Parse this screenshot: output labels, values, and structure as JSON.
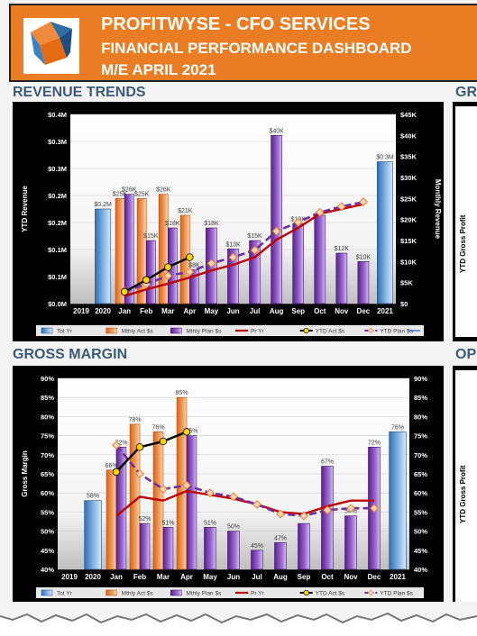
{
  "header": {
    "line1": "PROFITWYSE - CFO SERVICES",
    "line2": "FINANCIAL PERFORMANCE DASHBOARD",
    "line3": "M/E APRIL 2021"
  },
  "sections": {
    "revenue_title": "REVENUE TRENDS",
    "gm_title": "GROSS MARGIN",
    "right_top_title": "GR",
    "right_bottom_title": "OP",
    "right_top_axis": "YTD Gross Profit",
    "right_bottom_axis": "YTD Gross Profit"
  },
  "colors": {
    "header_bg": "#ea7d23",
    "tot_yr": "#5b9bd5",
    "mthly_act": "#ed7d31",
    "mthly_plan": "#7030a0",
    "pr_yr": "#c00000",
    "ytd_act": "#000000",
    "ytd_plan": "#7030a0"
  },
  "chart_data": [
    {
      "type": "bar",
      "title": "REVENUE TRENDS",
      "categories": [
        "2019",
        "2020",
        "Jan",
        "Feb",
        "Mar",
        "Apr",
        "May",
        "Jun",
        "Jul",
        "Aug",
        "Sep",
        "Oct",
        "Nov",
        "Dec",
        "2021"
      ],
      "ylabel": "YTD Revenue",
      "y2label": "Monthly Revenue",
      "yticks": [
        "$0.0M",
        "$0.1M",
        "$0.1M",
        "$0.2M",
        "$0.2M",
        "$0.3M",
        "$0.3M",
        "$0.4M"
      ],
      "y2ticks": [
        "$0",
        "$5K",
        "$10K",
        "$15K",
        "$20K",
        "$25K",
        "$30K",
        "$35K",
        "$40K",
        "$45K"
      ],
      "ylim": [
        0,
        0.4
      ],
      "y2lim": [
        0,
        45
      ],
      "series": [
        {
          "name": "Tot Yr",
          "axis": "left",
          "kind": "bar",
          "points": [
            {
              "x": "2020",
              "y": 0.2,
              "label": "$0.2M"
            },
            {
              "x": "2021",
              "y": 0.3,
              "label": "$0.3M"
            }
          ]
        },
        {
          "name": "Mthly Act $s",
          "axis": "right",
          "kind": "bar",
          "points": [
            {
              "x": "Jan",
              "y": 25,
              "label": "$25K"
            },
            {
              "x": "Feb",
              "y": 25,
              "label": "$25K"
            },
            {
              "x": "Mar",
              "y": 26,
              "label": "$26K"
            },
            {
              "x": "Apr",
              "y": 21,
              "label": "$21K"
            }
          ]
        },
        {
          "name": "Mthly Plan $s",
          "axis": "right",
          "kind": "bar",
          "points": [
            {
              "x": "Jan",
              "y": 26,
              "label": "$26K"
            },
            {
              "x": "Feb",
              "y": 15,
              "label": "$15K"
            },
            {
              "x": "Mar",
              "y": 18,
              "label": "$18K"
            },
            {
              "x": "Apr",
              "y": 8,
              "label": "$8K"
            },
            {
              "x": "May",
              "y": 18,
              "label": "$18K"
            },
            {
              "x": "Jun",
              "y": 13,
              "label": "$13K"
            },
            {
              "x": "Jul",
              "y": 15,
              "label": "$15K"
            },
            {
              "x": "Aug",
              "y": 40,
              "label": "$40K"
            },
            {
              "x": "Sep",
              "y": 19,
              "label": "$19K"
            },
            {
              "x": "Oct",
              "y": 21,
              "label": ""
            },
            {
              "x": "Nov",
              "y": 12,
              "label": "$12K"
            },
            {
              "x": "Dec",
              "y": 10,
              "label": "$10K"
            }
          ]
        },
        {
          "name": "Pr Yr",
          "axis": "left",
          "kind": "line",
          "points": [
            {
              "x": "Jan",
              "y": 0.016
            },
            {
              "x": "Feb",
              "y": 0.03
            },
            {
              "x": "Mar",
              "y": 0.042
            },
            {
              "x": "Apr",
              "y": 0.055
            },
            {
              "x": "May",
              "y": 0.07
            },
            {
              "x": "Jun",
              "y": 0.082
            },
            {
              "x": "Jul",
              "y": 0.098
            },
            {
              "x": "Aug",
              "y": 0.135
            },
            {
              "x": "Sep",
              "y": 0.16
            },
            {
              "x": "Oct",
              "y": 0.19
            },
            {
              "x": "Nov",
              "y": 0.2
            },
            {
              "x": "Dec",
              "y": 0.21
            }
          ]
        },
        {
          "name": "YTD Act $s",
          "axis": "left",
          "kind": "line",
          "points": [
            {
              "x": "Jan",
              "y": 0.025
            },
            {
              "x": "Feb",
              "y": 0.05
            },
            {
              "x": "Mar",
              "y": 0.077
            },
            {
              "x": "Apr",
              "y": 0.098
            }
          ]
        },
        {
          "name": "YTD Plan $s",
          "axis": "left",
          "kind": "line",
          "points": [
            {
              "x": "Jan",
              "y": 0.026
            },
            {
              "x": "Feb",
              "y": 0.041
            },
            {
              "x": "Mar",
              "y": 0.059
            },
            {
              "x": "Apr",
              "y": 0.067
            },
            {
              "x": "May",
              "y": 0.085
            },
            {
              "x": "Jun",
              "y": 0.098
            },
            {
              "x": "Jul",
              "y": 0.113
            },
            {
              "x": "Aug",
              "y": 0.153
            },
            {
              "x": "Sep",
              "y": 0.172
            },
            {
              "x": "Oct",
              "y": 0.193
            },
            {
              "x": "Nov",
              "y": 0.205
            },
            {
              "x": "Dec",
              "y": 0.215
            }
          ]
        }
      ],
      "legend": [
        "Tot Yr",
        "Mthly Act $s",
        "Mthly Plan $s",
        "Pr Yr",
        "YTD Act $s",
        "YTD Plan $s"
      ]
    },
    {
      "type": "bar",
      "title": "GROSS MARGIN",
      "categories": [
        "2019",
        "2020",
        "Jan",
        "Feb",
        "Mar",
        "Apr",
        "May",
        "Jun",
        "Jul",
        "Aug",
        "Sep",
        "Oct",
        "Nov",
        "Dec",
        "2021"
      ],
      "ylabel": "Gross Margin",
      "yticks": [
        "40%",
        "45%",
        "50%",
        "55%",
        "60%",
        "65%",
        "70%",
        "75%",
        "80%",
        "85%",
        "90%"
      ],
      "y2ticks": [
        "40%",
        "45%",
        "50%",
        "55%",
        "60%",
        "65%",
        "70%",
        "75%",
        "80%",
        "85%",
        "90%"
      ],
      "ylim": [
        40,
        90
      ],
      "series": [
        {
          "name": "Tot Yr",
          "kind": "bar",
          "points": [
            {
              "x": "2020",
              "y": 58,
              "label": "58%"
            },
            {
              "x": "2021",
              "y": 76,
              "label": "76%"
            }
          ]
        },
        {
          "name": "Mthly Act $s",
          "kind": "bar",
          "points": [
            {
              "x": "Jan",
              "y": 66,
              "label": "66%"
            },
            {
              "x": "Feb",
              "y": 78,
              "label": "78%"
            },
            {
              "x": "Mar",
              "y": 76,
              "label": "76%"
            },
            {
              "x": "Apr",
              "y": 85,
              "label": "85%"
            }
          ]
        },
        {
          "name": "Mthly Plan $s",
          "kind": "bar",
          "points": [
            {
              "x": "Jan",
              "y": 72,
              "label": "72%"
            },
            {
              "x": "Feb",
              "y": 52,
              "label": "52%"
            },
            {
              "x": "Mar",
              "y": 51,
              "label": "51%"
            },
            {
              "x": "Apr",
              "y": 75,
              "label": "75%"
            },
            {
              "x": "May",
              "y": 51,
              "label": "51%"
            },
            {
              "x": "Jun",
              "y": 50,
              "label": "50%"
            },
            {
              "x": "Jul",
              "y": 45,
              "label": "45%"
            },
            {
              "x": "Aug",
              "y": 47,
              "label": "47%"
            },
            {
              "x": "Sep",
              "y": 52,
              "label": ""
            },
            {
              "x": "Oct",
              "y": 67,
              "label": "67%"
            },
            {
              "x": "Nov",
              "y": 54,
              "label": "54%"
            },
            {
              "x": "Dec",
              "y": 72,
              "label": "72%"
            }
          ]
        },
        {
          "name": "Pr Yr",
          "kind": "line",
          "points": [
            {
              "x": "Jan",
              "y": 54
            },
            {
              "x": "Feb",
              "y": 59
            },
            {
              "x": "Mar",
              "y": 58
            },
            {
              "x": "Apr",
              "y": 60.5
            },
            {
              "x": "May",
              "y": 59.5
            },
            {
              "x": "Jun",
              "y": 58.5
            },
            {
              "x": "Jul",
              "y": 57
            },
            {
              "x": "Aug",
              "y": 55
            },
            {
              "x": "Sep",
              "y": 54.5
            },
            {
              "x": "Oct",
              "y": 56.5
            },
            {
              "x": "Nov",
              "y": 58
            },
            {
              "x": "Dec",
              "y": 58
            }
          ]
        },
        {
          "name": "YTD Act $s",
          "kind": "line",
          "points": [
            {
              "x": "Jan",
              "y": 65.5
            },
            {
              "x": "Feb",
              "y": 72
            },
            {
              "x": "Mar",
              "y": 73.5
            },
            {
              "x": "Apr",
              "y": 76
            }
          ]
        },
        {
          "name": "YTD Plan $s",
          "kind": "line",
          "points": [
            {
              "x": "Jan",
              "y": 72.5
            },
            {
              "x": "Feb",
              "y": 65
            },
            {
              "x": "Mar",
              "y": 61
            },
            {
              "x": "Apr",
              "y": 62
            },
            {
              "x": "May",
              "y": 60
            },
            {
              "x": "Jun",
              "y": 59
            },
            {
              "x": "Jul",
              "y": 57
            },
            {
              "x": "Aug",
              "y": 54.5
            },
            {
              "x": "Sep",
              "y": 54
            },
            {
              "x": "Oct",
              "y": 55.5
            },
            {
              "x": "Nov",
              "y": 56
            },
            {
              "x": "Dec",
              "y": 56
            }
          ]
        }
      ],
      "legend": [
        "Tot Yr",
        "Mthly Act $s",
        "Mthly Plan $s",
        "Pr Yr",
        "YTD Act $s",
        "YTD Plan $s"
      ]
    }
  ]
}
